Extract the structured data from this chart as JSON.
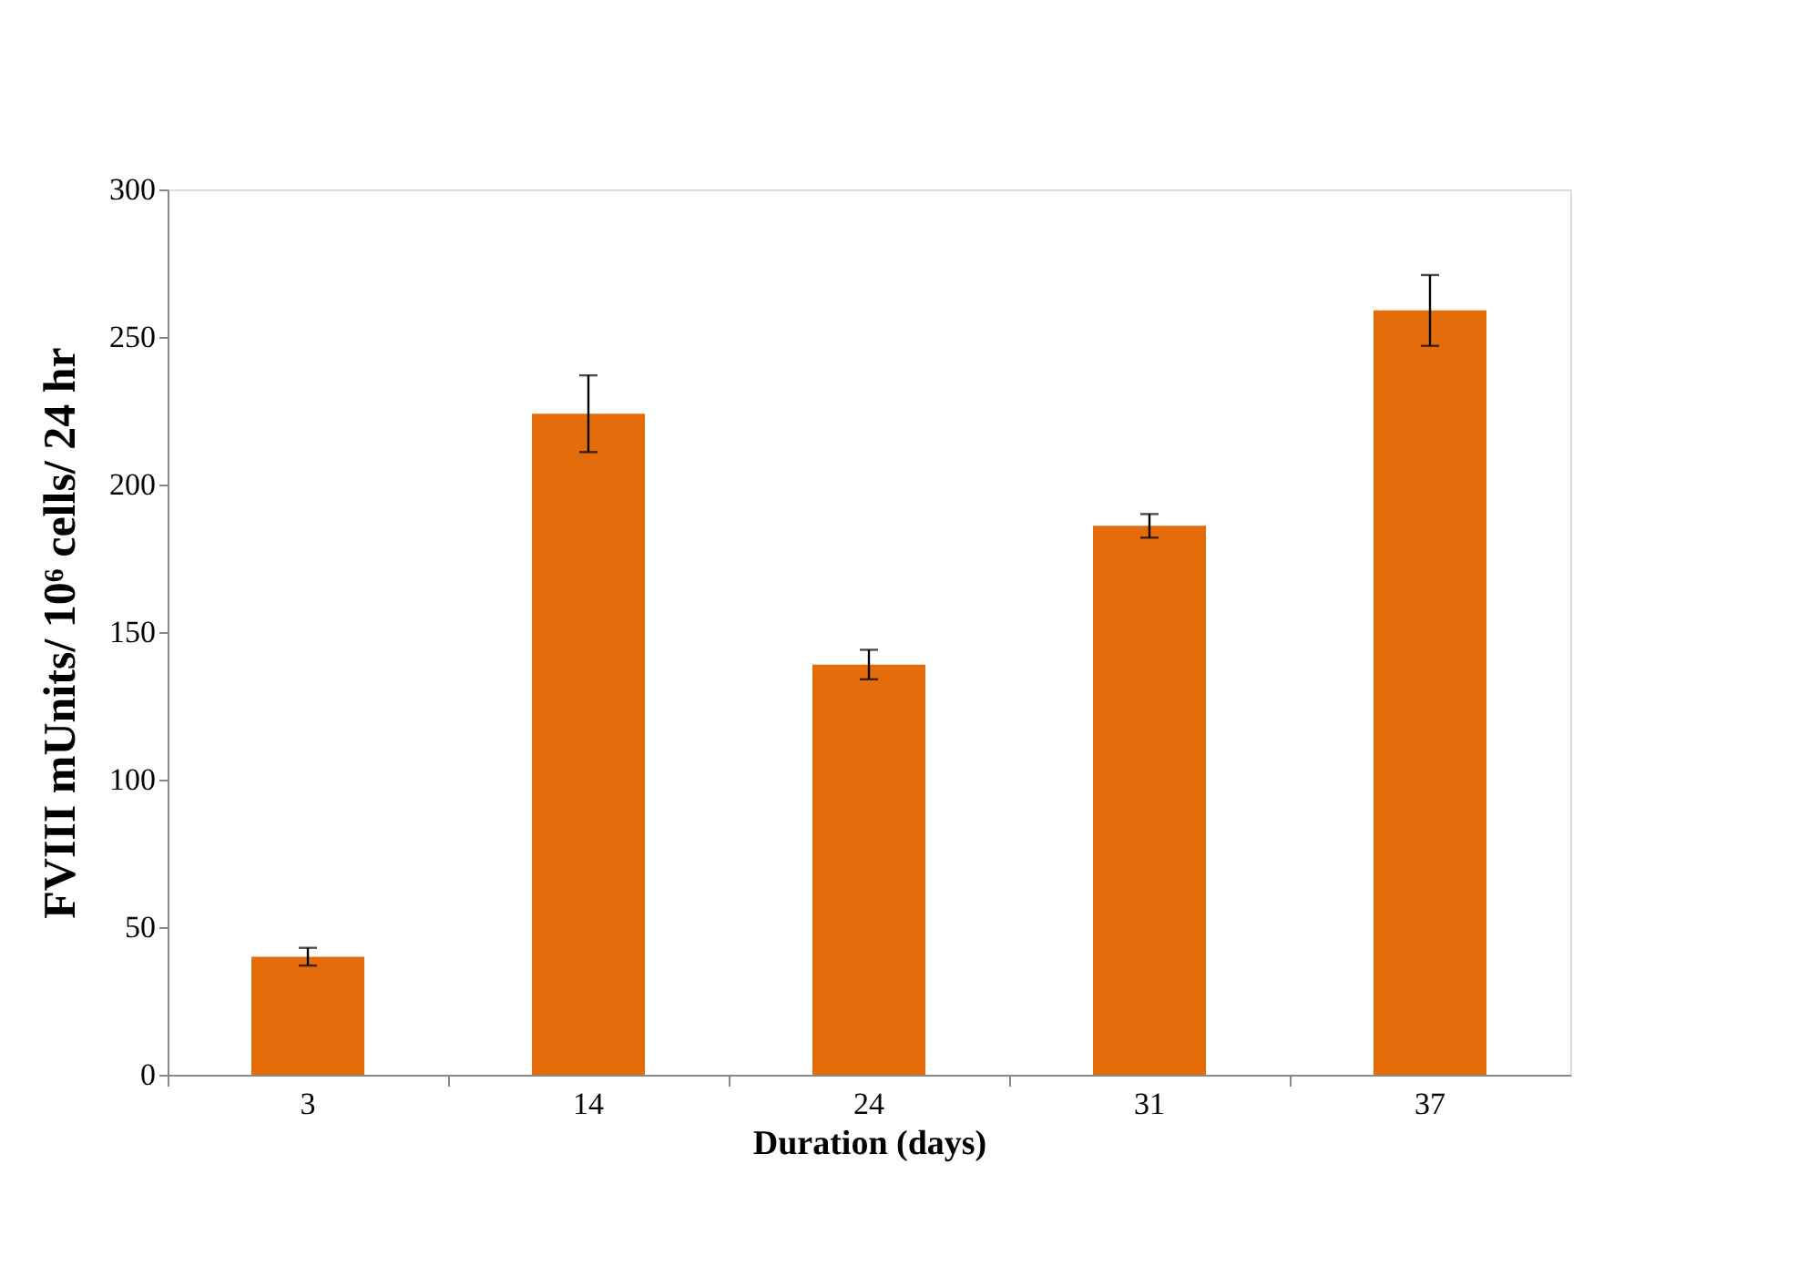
{
  "chart_data": {
    "type": "bar",
    "xlabel": "Duration (days)",
    "ylabel": "FVIII mUnits/ 10⁶ cells/ 24 hr",
    "categories": [
      "3",
      "14",
      "24",
      "31",
      "37"
    ],
    "values": [
      40,
      224,
      139,
      186,
      259
    ],
    "errors": [
      3,
      13,
      5,
      4,
      12
    ],
    "color": "#e46c0a",
    "ylim": [
      0,
      300
    ],
    "yticks": [
      0,
      50,
      100,
      150,
      200,
      250,
      300
    ],
    "grid": false
  }
}
